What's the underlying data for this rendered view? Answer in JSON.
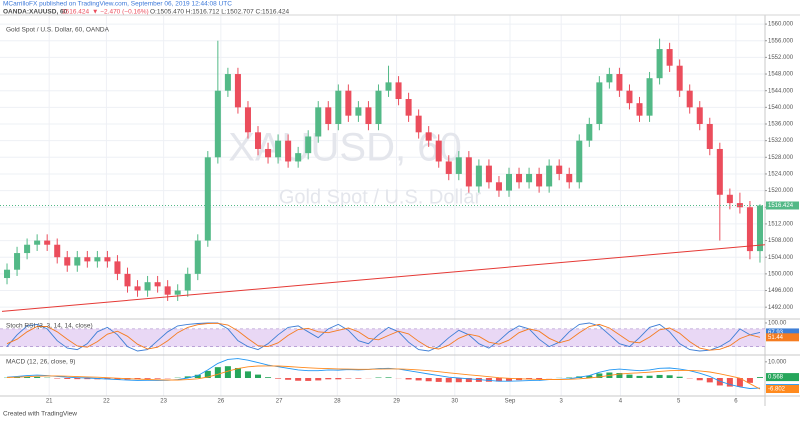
{
  "header": {
    "publisher": "MCarrilloFX published on TradingView.com, September 06, 2019 12:44:08 UTC",
    "symbol": "OANDA:XAUUSD, 60",
    "last": "1516.424",
    "change": "▼ −2.470 (−0.16%)",
    "ohlc": "O:1505.470 H:1516.712 L:1502.707 C:1516.424"
  },
  "watermark": {
    "symbol": "XAUUSD, 60",
    "name": "Gold Spot / U.S. Dollar"
  },
  "footer": "Created with TradingView",
  "chart_data": [
    {
      "type": "candlestick",
      "title": "Gold Spot / U.S. Dollar, 60, OANDA",
      "up_color": "#53b987",
      "down_color": "#eb4d5c",
      "grid": true,
      "xlim": [
        -0.5,
        75.5
      ],
      "ylim": [
        1489.4,
        1561.7
      ],
      "xticks": [
        {
          "value": 4.2,
          "label": "21"
        },
        {
          "value": 9.9,
          "label": "22"
        },
        {
          "value": 15.6,
          "label": "23"
        },
        {
          "value": 21.3,
          "label": "26"
        },
        {
          "value": 27.1,
          "label": "27"
        },
        {
          "value": 32.9,
          "label": "28"
        },
        {
          "value": 38.8,
          "label": "29"
        },
        {
          "value": 44.6,
          "label": "30"
        },
        {
          "value": 50.1,
          "label": "Sep"
        },
        {
          "value": 55.2,
          "label": "3"
        },
        {
          "value": 61.1,
          "label": "4"
        },
        {
          "value": 66.9,
          "label": "5"
        },
        {
          "value": 72.6,
          "label": "6"
        }
      ],
      "yticks": [
        {
          "value": 1492,
          "label": "1492.000"
        },
        {
          "value": 1496,
          "label": "1496.000"
        },
        {
          "value": 1500,
          "label": "1500.000"
        },
        {
          "value": 1504,
          "label": "1504.000"
        },
        {
          "value": 1508,
          "label": "1508.000"
        },
        {
          "value": 1512,
          "label": "1512.000"
        },
        {
          "value": 1516,
          "label": "1516.000"
        },
        {
          "value": 1520,
          "label": "1520.000"
        },
        {
          "value": 1524,
          "label": "1524.000"
        },
        {
          "value": 1528,
          "label": "1528.000"
        },
        {
          "value": 1532,
          "label": "1532.000"
        },
        {
          "value": 1536,
          "label": "1536.000"
        },
        {
          "value": 1540,
          "label": "1540.000"
        },
        {
          "value": 1544,
          "label": "1544.000"
        },
        {
          "value": 1548,
          "label": "1548.000"
        },
        {
          "value": 1552,
          "label": "1552.000"
        },
        {
          "value": 1556,
          "label": "1556.000"
        },
        {
          "value": 1560,
          "label": "1560.000"
        }
      ],
      "candles": {
        "open": [
          1499,
          1501,
          1505,
          1507,
          1508,
          1507,
          1504,
          1502,
          1504,
          1503,
          1504,
          1503,
          1500,
          1497,
          1496,
          1498,
          1497,
          1495,
          1496,
          1500,
          1508,
          1528,
          1544,
          1548,
          1540,
          1534,
          1530,
          1528,
          1532,
          1527,
          1529,
          1533,
          1540,
          1536,
          1544,
          1538,
          1540,
          1536,
          1544,
          1546,
          1542,
          1538,
          1534,
          1532,
          1527,
          1524,
          1528,
          1521,
          1526,
          1522,
          1520,
          1524,
          1522,
          1524,
          1521,
          1526,
          1524,
          1522,
          1532,
          1536,
          1546,
          1548,
          1544,
          1541,
          1538,
          1547,
          1554,
          1550,
          1544,
          1540,
          1536,
          1530,
          1519,
          1517,
          1516,
          1505.47
        ],
        "high": [
          1502.5,
          1506.5,
          1508.5,
          1509.5,
          1509.5,
          1508.5,
          1505.5,
          1505.5,
          1505.5,
          1505.5,
          1505.5,
          1504.5,
          1501.5,
          1498.5,
          1499.5,
          1499.5,
          1498.5,
          1497.5,
          1501.5,
          1509.5,
          1529.5,
          1556,
          1549.5,
          1549.5,
          1541.5,
          1535.5,
          1531.5,
          1533.5,
          1533.5,
          1530.5,
          1534.5,
          1541.5,
          1541.5,
          1545.5,
          1545.5,
          1541.5,
          1541.5,
          1545.5,
          1550,
          1547.5,
          1543.5,
          1539.5,
          1535.5,
          1533.5,
          1528.5,
          1529.5,
          1529.5,
          1527.5,
          1527.5,
          1523.5,
          1525.5,
          1525.5,
          1525.5,
          1525.5,
          1527.5,
          1527.5,
          1525.5,
          1533.5,
          1537.5,
          1547.5,
          1549.5,
          1549.5,
          1545.5,
          1542.5,
          1548.5,
          1556.5,
          1555.5,
          1551.5,
          1545.5,
          1541.5,
          1537.5,
          1531.5,
          1520.5,
          1519.5,
          1517.5,
          1516.712
        ],
        "low": [
          1497.5,
          1499.5,
          1503.5,
          1505.5,
          1505.5,
          1502.5,
          1500.5,
          1500.5,
          1501.5,
          1501.5,
          1501.5,
          1498.5,
          1495.5,
          1494.5,
          1494.5,
          1495.5,
          1493.5,
          1493.5,
          1494.5,
          1498.5,
          1506.5,
          1526.5,
          1542.5,
          1538.5,
          1532.5,
          1528.5,
          1526.5,
          1526.5,
          1525.5,
          1525.5,
          1527.5,
          1531.5,
          1534.5,
          1534.5,
          1536.5,
          1536.5,
          1534.5,
          1534.5,
          1542.5,
          1540.5,
          1536.5,
          1532.5,
          1530.5,
          1525.5,
          1522.5,
          1522.5,
          1519.5,
          1519.5,
          1520.5,
          1518.5,
          1518.5,
          1520.5,
          1520.5,
          1519.5,
          1519.5,
          1522.5,
          1520.5,
          1520.5,
          1530.5,
          1534.5,
          1544.5,
          1542.5,
          1539.5,
          1536.5,
          1536.5,
          1545.5,
          1548.5,
          1542.5,
          1538.5,
          1534.5,
          1528.5,
          1508,
          1515.5,
          1514.5,
          1503.5,
          1502.707
        ],
        "close": [
          1501,
          1505,
          1507,
          1508,
          1507,
          1504,
          1502,
          1504,
          1503,
          1504,
          1503,
          1500,
          1497,
          1496,
          1498,
          1497,
          1495,
          1496,
          1500,
          1508,
          1528,
          1544,
          1548,
          1540,
          1534,
          1530,
          1528,
          1532,
          1527,
          1529,
          1533,
          1540,
          1536,
          1544,
          1538,
          1540,
          1536,
          1544,
          1546,
          1542,
          1538,
          1534,
          1532,
          1527,
          1524,
          1528,
          1521,
          1526,
          1522,
          1520,
          1524,
          1522,
          1524,
          1521,
          1526,
          1524,
          1522,
          1532,
          1536,
          1546,
          1548,
          1544,
          1541,
          1538,
          1547,
          1554,
          1550,
          1544,
          1540,
          1536,
          1530,
          1519,
          1517,
          1516,
          1505.47,
          1516.424
        ]
      },
      "trendline": {
        "color": "#e53935",
        "x": [
          -0.5,
          75.5
        ],
        "y": [
          1491,
          1507
        ]
      }
    },
    {
      "type": "line",
      "title": "Stoch RSI (3, 3, 14, 14, close)",
      "xlim": [
        -0.5,
        75.5
      ],
      "ylim": [
        -5,
        110
      ],
      "yticks": [
        {
          "value": 100,
          "label": "100.00"
        }
      ],
      "bands": [
        20,
        80
      ],
      "band_color": "#e9d8f5",
      "series": [
        {
          "color": "#3f7fd6",
          "values": [
            20,
            60,
            90,
            95,
            80,
            40,
            15,
            10,
            30,
            70,
            85,
            60,
            20,
            5,
            10,
            40,
            70,
            90,
            95,
            98,
            100,
            100,
            80,
            40,
            20,
            10,
            30,
            60,
            85,
            90,
            70,
            50,
            80,
            95,
            75,
            40,
            30,
            60,
            85,
            70,
            35,
            10,
            5,
            20,
            50,
            75,
            60,
            30,
            15,
            40,
            70,
            90,
            80,
            45,
            20,
            35,
            70,
            95,
            100,
            90,
            60,
            30,
            20,
            50,
            85,
            95,
            70,
            30,
            10,
            5,
            8,
            20,
            40,
            80,
            60,
            67.93
          ]
        },
        {
          "color": "#f57c20",
          "values": [
            30,
            45,
            70,
            88,
            88,
            70,
            45,
            22,
            18,
            37,
            62,
            72,
            55,
            28,
            12,
            18,
            40,
            67,
            85,
            94,
            98,
            99,
            93,
            73,
            47,
            23,
            20,
            33,
            58,
            78,
            82,
            70,
            67,
            75,
            83,
            70,
            48,
            43,
            58,
            72,
            63,
            38,
            17,
            12,
            25,
            48,
            62,
            55,
            35,
            28,
            42,
            67,
            80,
            72,
            48,
            33,
            42,
            67,
            88,
            95,
            83,
            60,
            37,
            33,
            52,
            77,
            83,
            65,
            37,
            15,
            8,
            11,
            23,
            47,
            60,
            51.44
          ]
        }
      ]
    },
    {
      "type": "line",
      "title": "MACD (12, 26, close, 9)",
      "xlim": [
        -0.5,
        75.5
      ],
      "ylim": [
        -10.5,
        13.6
      ],
      "yticks": [
        {
          "value": 10,
          "label": "10.000"
        }
      ],
      "histogram": {
        "up_color": "#26a65b",
        "down_color": "#ef5350",
        "values": [
          0.2,
          0.5,
          0.7,
          0.7,
          0.2,
          -0.3,
          -0.6,
          -0.7,
          -0.7,
          -0.8,
          -0.8,
          -0.9,
          -0.9,
          -0.8,
          -0.5,
          -0.4,
          -0.2,
          0.2,
          1,
          2,
          4.4,
          6.7,
          7.3,
          6.2,
          4.1,
          2.1,
          0.5,
          -0.4,
          -1.1,
          -1.7,
          -1.8,
          -1.5,
          -0.8,
          -0.8,
          -0.3,
          -0.4,
          -0.1,
          0.3,
          0.4,
          -0.1,
          -0.9,
          -1.5,
          -2,
          -2.4,
          -2.7,
          -2.6,
          -2.5,
          -2.4,
          -2.3,
          -2.2,
          -1.8,
          -1.3,
          -0.9,
          -0.6,
          -0.1,
          0.1,
          0.3,
          1,
          1.5,
          2.8,
          3.4,
          3.1,
          2.1,
          1.3,
          1.4,
          1.9,
          1.7,
          0.8,
          -0.2,
          -1.4,
          -2.7,
          -4.6,
          -5.3,
          -5.4,
          -3,
          0.568
        ]
      },
      "series": [
        {
          "color": "#2196f3",
          "values": [
            0.5,
            1,
            1.5,
            1.8,
            1.5,
            1,
            0.5,
            0.2,
            0,
            -0.3,
            -0.6,
            -1,
            -1.3,
            -1.5,
            -1.4,
            -1.5,
            -1.4,
            -1,
            0,
            1.5,
            5,
            9,
            11.5,
            12,
            11,
            9.5,
            8,
            7,
            6,
            5,
            4.5,
            4.5,
            5,
            4.8,
            5.2,
            5,
            5.3,
            5.8,
            6,
            5.5,
            4.5,
            3.5,
            2.5,
            1.5,
            0.5,
            0,
            -0.5,
            -1,
            -1.5,
            -2,
            -2,
            -1.8,
            -1.6,
            -1.5,
            -1,
            -0.8,
            -0.5,
            0.5,
            1.5,
            3.5,
            5,
            5.5,
            5,
            4.5,
            5,
            6,
            6.2,
            5.5,
            4.5,
            3,
            1,
            -2,
            -4,
            -5.5,
            -6.5,
            -6.234
          ]
        },
        {
          "color": "#ff8a1e",
          "values": [
            0.3,
            0.5,
            0.8,
            1.1,
            1.3,
            1.3,
            1.1,
            0.9,
            0.7,
            0.5,
            0.2,
            -0.1,
            -0.4,
            -0.7,
            -0.9,
            -1.1,
            -1.2,
            -1.2,
            -1,
            -0.5,
            0.6,
            2.3,
            4.2,
            5.8,
            6.9,
            7.4,
            7.5,
            7.4,
            7.1,
            6.7,
            6.3,
            6,
            5.8,
            5.6,
            5.5,
            5.4,
            5.4,
            5.5,
            5.6,
            5.6,
            5.4,
            5,
            4.5,
            3.9,
            3.2,
            2.6,
            2,
            1.4,
            0.8,
            0.2,
            -0.2,
            -0.5,
            -0.7,
            -0.9,
            -0.9,
            -0.9,
            -0.8,
            -0.5,
            0,
            0.7,
            1.6,
            2.4,
            2.9,
            3.2,
            3.6,
            4.1,
            4.5,
            4.7,
            4.7,
            4.4,
            3.7,
            2.6,
            1.3,
            -0.1,
            -3.5,
            -6.802
          ]
        }
      ]
    }
  ]
}
